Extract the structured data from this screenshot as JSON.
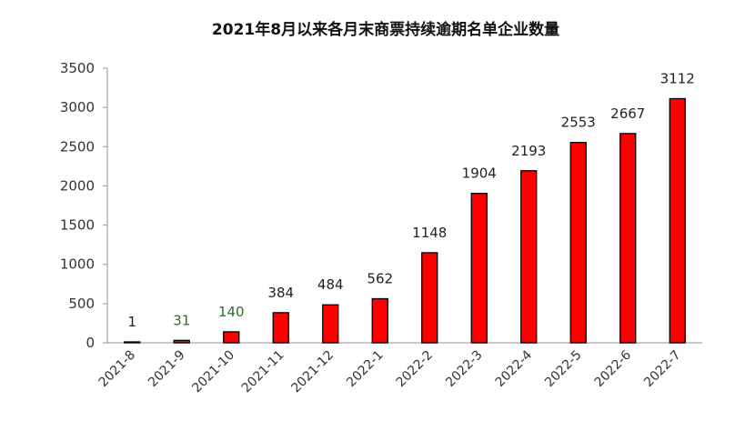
{
  "chart_data": {
    "type": "bar",
    "title": "2021年8月以来各月末商票持续逾期名单企业数量",
    "xlabel": "",
    "ylabel": "",
    "categories": [
      "2021-8",
      "2021-9",
      "2021-10",
      "2021-11",
      "2021-12",
      "2022-1",
      "2022-2",
      "2022-3",
      "2022-4",
      "2022-5",
      "2022-6",
      "2022-7"
    ],
    "values": [
      1,
      31,
      140,
      384,
      484,
      562,
      1148,
      1904,
      2193,
      2553,
      2667,
      3112
    ],
    "ylim": [
      0,
      3500
    ],
    "yticks": [
      "0",
      "500",
      "1000",
      "1500",
      "2000",
      "2500",
      "3000",
      "3500"
    ],
    "data_labels": [
      "1",
      "31",
      "140",
      "384",
      "484",
      "562",
      "1148",
      "1904",
      "2193",
      "2553",
      "2667",
      "3112"
    ],
    "grid": false,
    "legend": "none",
    "colors": {
      "bar_fill": "#ff0000",
      "bar_stroke": "#000000",
      "axis": "#a6a6a6",
      "label_green": "#2e6b2e",
      "label_default": "#222222"
    }
  }
}
